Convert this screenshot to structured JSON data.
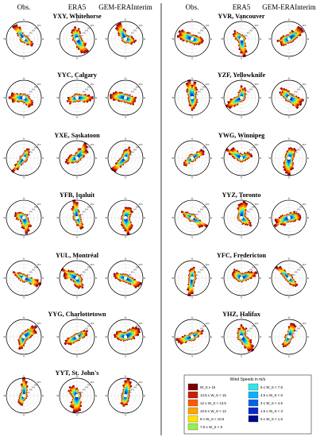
{
  "headers": {
    "left": [
      "Obs.",
      "ERA5",
      "GEM-ERAInterim"
    ],
    "right": [
      "Obs.",
      "ERA5",
      "GEM-ERAInterim"
    ]
  },
  "chart_data": {
    "type": "wind-rose",
    "stations_left": [
      {
        "name": "YXY, Whitehorse"
      },
      {
        "name": "YYC, Calgary"
      },
      {
        "name": "YXE, Saskatoon"
      },
      {
        "name": "YFB, Iqaluit"
      },
      {
        "name": "YUL, Montréal"
      },
      {
        "name": "YYG, Charlottetown"
      },
      {
        "name": "YYT, St. John's"
      }
    ],
    "stations_right": [
      {
        "name": "YVR, Vancouver"
      },
      {
        "name": "YZF, Yellowknife"
      },
      {
        "name": "YWG, Winnipeg"
      },
      {
        "name": "YYZ, Toronto"
      },
      {
        "name": "YFC, Fredericton"
      },
      {
        "name": "YHZ, Halifax"
      }
    ],
    "datasets": [
      "Obs.",
      "ERA5",
      "GEM-ERAInterim"
    ],
    "cardinals": [
      "N",
      "E",
      "S",
      "W"
    ],
    "legend": {
      "title": "Wind Speeds in m/s",
      "bins": [
        {
          "label": "W_S ≥ 15",
          "color": "#7b0000"
        },
        {
          "label": "13.5 ≤ W_S < 15",
          "color": "#c81e0a"
        },
        {
          "label": "12 ≤ W_S < 13.5",
          "color": "#ff5a00"
        },
        {
          "label": "10.5 ≤ W_S < 12",
          "color": "#ffa500"
        },
        {
          "label": "9 ≤ W_S < 10.5",
          "color": "#ffe600"
        },
        {
          "label": "7.5 ≤ W_S < 9",
          "color": "#96f050"
        },
        {
          "label": "6 ≤ W_S < 7.5",
          "color": "#32e6e6"
        },
        {
          "label": "4.5 ≤ W_S < 6",
          "color": "#00b4ff"
        },
        {
          "label": "3 ≤ W_S < 4.5",
          "color": "#0064e6"
        },
        {
          "label": "1.5 ≤ W_S < 3",
          "color": "#0a28c8"
        },
        {
          "label": "0 ≤ W_S < 1.5",
          "color": "#000a8c"
        }
      ]
    },
    "ring_labels": [
      "2%",
      "4%",
      "6%",
      "8%",
      "10%"
    ]
  }
}
